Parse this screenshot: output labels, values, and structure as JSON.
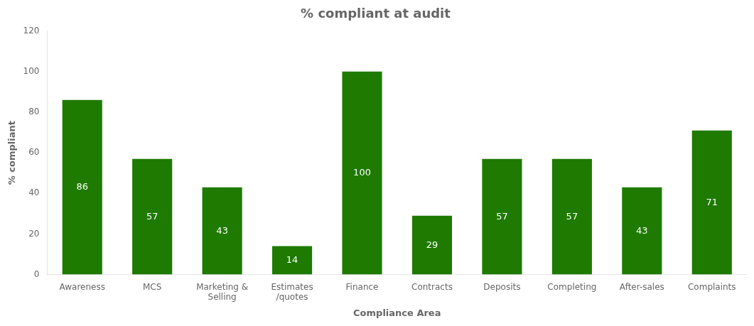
{
  "chart_data": {
    "type": "bar",
    "title": "% compliant at audit",
    "xlabel": "Compliance Area",
    "ylabel": "% compliant",
    "categories": [
      "Awareness",
      "MCS",
      "Marketing &\nSelling",
      "Estimates\n/quotes",
      "Finance",
      "Contracts",
      "Deposits",
      "Completing",
      "After-sales",
      "Complaints"
    ],
    "values": [
      86,
      57,
      43,
      14,
      100,
      29,
      57,
      57,
      43,
      71
    ],
    "color": "#1e7a00",
    "ylim": [
      0,
      120
    ],
    "yticks": [
      0,
      20,
      40,
      60,
      80,
      100,
      120
    ],
    "grid": false,
    "data_labels": true
  }
}
